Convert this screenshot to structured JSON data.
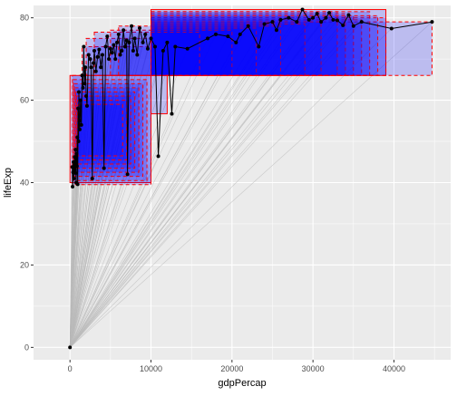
{
  "chart_data": {
    "type": "scatter",
    "title": "",
    "xlabel": "gdpPercap",
    "ylabel": "lifeExp",
    "xlim": [
      -4500,
      47000
    ],
    "ylim": [
      -3,
      83
    ],
    "x_ticks": [
      0,
      10000,
      20000,
      30000,
      40000
    ],
    "x_tick_labels": [
      "0",
      "10000",
      "20000",
      "30000",
      "40000"
    ],
    "y_ticks": [
      0,
      20,
      40,
      60,
      80
    ],
    "y_tick_labels": [
      "0",
      "20",
      "40",
      "60",
      "80"
    ],
    "grid": true,
    "legend": "none",
    "panel_color": "#ebebeb",
    "rect_fill_color": "#0000ff",
    "rect_border_color": "#ff0000",
    "segment_color": "#bbbbbb",
    "line_color": "#000000",
    "origin": [
      0,
      0
    ],
    "points": [
      [
        277,
        43.8
      ],
      [
        320,
        39.0
      ],
      [
        380,
        42.5
      ],
      [
        430,
        45.0
      ],
      [
        470,
        41.0
      ],
      [
        520,
        44.5
      ],
      [
        580,
        46.2
      ],
      [
        620,
        43.0
      ],
      [
        680,
        48.0
      ],
      [
        720,
        42.3
      ],
      [
        760,
        40.0
      ],
      [
        800,
        47.0
      ],
      [
        860,
        44.0
      ],
      [
        900,
        51.0
      ],
      [
        950,
        39.6
      ],
      [
        1000,
        58.0
      ],
      [
        1050,
        50.0
      ],
      [
        1100,
        62.0
      ],
      [
        1150,
        55.0
      ],
      [
        1200,
        52.9
      ],
      [
        1300,
        60.0
      ],
      [
        1400,
        54.0
      ],
      [
        1500,
        66.0
      ],
      [
        1600,
        63.0
      ],
      [
        1700,
        73.0
      ],
      [
        1800,
        64.0
      ],
      [
        1900,
        68.0
      ],
      [
        2000,
        61.0
      ],
      [
        2100,
        58.6
      ],
      [
        2300,
        71.0
      ],
      [
        2500,
        70.0
      ],
      [
        2600,
        68.0
      ],
      [
        2750,
        41.0
      ],
      [
        2900,
        69.0
      ],
      [
        3000,
        72.0
      ],
      [
        3200,
        67.0
      ],
      [
        3400,
        70.5
      ],
      [
        3600,
        72.3
      ],
      [
        3800,
        68.0
      ],
      [
        4000,
        71.0
      ],
      [
        4200,
        43.5
      ],
      [
        4400,
        73.0
      ],
      [
        4600,
        75.5
      ],
      [
        4800,
        70.0
      ],
      [
        5000,
        72.5
      ],
      [
        5200,
        71.5
      ],
      [
        5400,
        73.4
      ],
      [
        5600,
        70.0
      ],
      [
        5800,
        74.0
      ],
      [
        6000,
        76.0
      ],
      [
        6200,
        71.0
      ],
      [
        6400,
        72.0
      ],
      [
        6600,
        77.0
      ],
      [
        6800,
        73.0
      ],
      [
        7000,
        74.5
      ],
      [
        7100,
        42.0
      ],
      [
        7300,
        74.0
      ],
      [
        7600,
        78.0
      ],
      [
        7800,
        72.0
      ],
      [
        8000,
        75.0
      ],
      [
        8300,
        71.0
      ],
      [
        8600,
        77.5
      ],
      [
        9000,
        74.0
      ],
      [
        9300,
        76.0
      ],
      [
        9600,
        72.5
      ],
      [
        10000,
        75.0
      ],
      [
        10500,
        73.0
      ],
      [
        10900,
        46.4
      ],
      [
        11500,
        72.0
      ],
      [
        12000,
        74.0
      ],
      [
        12570,
        56.7
      ],
      [
        13000,
        73.0
      ],
      [
        14500,
        72.5
      ],
      [
        17000,
        75.0
      ],
      [
        18000,
        76.0
      ],
      [
        19500,
        75.5
      ],
      [
        20500,
        74.0
      ],
      [
        21000,
        76.0
      ],
      [
        22000,
        78.0
      ],
      [
        23300,
        73.0
      ],
      [
        24000,
        78.5
      ],
      [
        25000,
        79.0
      ],
      [
        25500,
        77.0
      ],
      [
        26000,
        79.5
      ],
      [
        27000,
        80.0
      ],
      [
        28000,
        79.0
      ],
      [
        28700,
        82.0
      ],
      [
        29500,
        79.5
      ],
      [
        30000,
        80.0
      ],
      [
        30500,
        81.0
      ],
      [
        31000,
        79.0
      ],
      [
        31600,
        80.0
      ],
      [
        32000,
        81.2
      ],
      [
        32500,
        79.5
      ],
      [
        33000,
        79.4
      ],
      [
        33700,
        78.2
      ],
      [
        34400,
        80.7
      ],
      [
        35000,
        78.0
      ],
      [
        36000,
        79.0
      ],
      [
        39700,
        77.4
      ],
      [
        44700,
        79.0
      ]
    ],
    "rects": [
      {
        "x": [
          0,
          10000
        ],
        "y": [
          40,
          66
        ],
        "style": "solid"
      },
      {
        "x": [
          10000,
          39000
        ],
        "y": [
          66,
          82
        ],
        "style": "solid"
      },
      {
        "x": [
          10000,
          12000
        ],
        "y": [
          56.7,
          66
        ],
        "style": "solid"
      },
      {
        "x": [
          300,
          10000
        ],
        "y": [
          39.5,
          66
        ],
        "style": "dashed"
      },
      {
        "x": [
          400,
          9500
        ],
        "y": [
          40.5,
          65
        ],
        "style": "dashed"
      },
      {
        "x": [
          500,
          9000
        ],
        "y": [
          41.5,
          64
        ],
        "style": "dashed"
      },
      {
        "x": [
          600,
          8500
        ],
        "y": [
          42.5,
          63
        ],
        "style": "dashed"
      },
      {
        "x": [
          700,
          8000
        ],
        "y": [
          43.5,
          62
        ],
        "style": "dashed"
      },
      {
        "x": [
          800,
          7500
        ],
        "y": [
          44.5,
          61
        ],
        "style": "dashed"
      },
      {
        "x": [
          900,
          7000
        ],
        "y": [
          45.5,
          60
        ],
        "style": "dashed"
      },
      {
        "x": [
          1000,
          6500
        ],
        "y": [
          46.5,
          59
        ],
        "style": "dashed"
      },
      {
        "x": [
          1500,
          10000
        ],
        "y": [
          66,
          73
        ],
        "style": "dashed"
      },
      {
        "x": [
          2000,
          10000
        ],
        "y": [
          66,
          75
        ],
        "style": "dashed"
      },
      {
        "x": [
          3000,
          10000
        ],
        "y": [
          66,
          76.5
        ],
        "style": "dashed"
      },
      {
        "x": [
          5000,
          10000
        ],
        "y": [
          66,
          77
        ],
        "style": "dashed"
      },
      {
        "x": [
          6000,
          10000
        ],
        "y": [
          66,
          78
        ],
        "style": "dashed"
      },
      {
        "x": [
          10000,
          44700
        ],
        "y": [
          66,
          79
        ],
        "style": "dashed"
      },
      {
        "x": [
          10000,
          39000
        ],
        "y": [
          66,
          80
        ],
        "style": "dashed"
      },
      {
        "x": [
          10000,
          36000
        ],
        "y": [
          66,
          79.5
        ],
        "style": "dashed"
      },
      {
        "x": [
          10000,
          35000
        ],
        "y": [
          66,
          80.5
        ],
        "style": "dashed"
      },
      {
        "x": [
          10000,
          34000
        ],
        "y": [
          66,
          81
        ],
        "style": "dashed"
      },
      {
        "x": [
          10000,
          33000
        ],
        "y": [
          66,
          81.5
        ],
        "style": "dashed"
      },
      {
        "x": [
          10000,
          31000
        ],
        "y": [
          66,
          79
        ],
        "style": "dashed"
      },
      {
        "x": [
          10000,
          29000
        ],
        "y": [
          66,
          78.5
        ],
        "style": "dashed"
      },
      {
        "x": [
          10000,
          26000
        ],
        "y": [
          66,
          78
        ],
        "style": "dashed"
      },
      {
        "x": [
          10000,
          23000
        ],
        "y": [
          66,
          77.5
        ],
        "style": "dashed"
      },
      {
        "x": [
          10000,
          20000
        ],
        "y": [
          66,
          77
        ],
        "style": "dashed"
      },
      {
        "x": [
          10000,
          16000
        ],
        "y": [
          66,
          76.5
        ],
        "style": "dashed"
      },
      {
        "x": [
          10000,
          37000
        ],
        "y": [
          66,
          81.5
        ],
        "style": "dashed"
      },
      {
        "x": [
          10000,
          38000
        ],
        "y": [
          66,
          80.5
        ],
        "style": "dashed"
      }
    ]
  }
}
